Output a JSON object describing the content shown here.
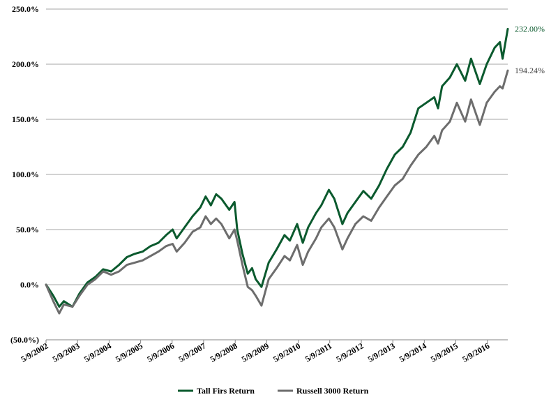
{
  "chart_data": {
    "type": "line",
    "title": "",
    "xlabel": "",
    "ylabel": "",
    "ylim": [
      -50,
      250
    ],
    "yticks": [
      -50,
      0,
      50,
      100,
      150,
      200,
      250
    ],
    "ytick_labels": [
      "(50.0%)",
      "0.0%",
      "50.0%",
      "100.0%",
      "150.0%",
      "200.0%",
      "250.0%"
    ],
    "xlim": [
      "2002-05-09",
      "2016-12-31"
    ],
    "xtick_labels": [
      "5/9/2002",
      "5/9/2003",
      "5/9/2004",
      "5/9/2005",
      "5/9/2006",
      "5/9/2007",
      "5/9/2008",
      "5/9/2009",
      "5/9/2010",
      "5/9/2011",
      "5/9/2012",
      "5/9/2013",
      "5/9/2014",
      "5/9/2015",
      "5/9/2016"
    ],
    "grid": "horizontal",
    "legend_position": "bottom",
    "series": [
      {
        "name": "Tall Firs Return",
        "color": "#0b5a2e",
        "end_label": "232.00%",
        "x": [
          "2002-05-09",
          "2002-08-01",
          "2002-10-09",
          "2002-12-01",
          "2003-03-11",
          "2003-06-01",
          "2003-09-01",
          "2003-12-01",
          "2004-03-01",
          "2004-06-01",
          "2004-09-01",
          "2004-12-01",
          "2005-03-01",
          "2005-06-01",
          "2005-09-01",
          "2005-12-01",
          "2006-03-01",
          "2006-05-15",
          "2006-07-01",
          "2006-10-01",
          "2007-01-01",
          "2007-04-01",
          "2007-06-01",
          "2007-08-01",
          "2007-10-01",
          "2007-12-01",
          "2008-03-01",
          "2008-05-01",
          "2008-06-01",
          "2008-08-01",
          "2008-10-01",
          "2008-11-20",
          "2009-01-01",
          "2009-03-09",
          "2009-06-01",
          "2009-09-01",
          "2009-12-01",
          "2010-02-01",
          "2010-04-26",
          "2010-07-01",
          "2010-09-01",
          "2010-12-01",
          "2011-02-01",
          "2011-04-29",
          "2011-07-01",
          "2011-10-03",
          "2011-12-01",
          "2012-03-01",
          "2012-06-01",
          "2012-09-01",
          "2012-12-01",
          "2013-03-01",
          "2013-06-01",
          "2013-09-01",
          "2013-12-01",
          "2014-03-01",
          "2014-06-01",
          "2014-09-01",
          "2014-10-15",
          "2014-12-01",
          "2015-03-01",
          "2015-05-21",
          "2015-08-25",
          "2015-11-01",
          "2016-02-11",
          "2016-05-01",
          "2016-08-01",
          "2016-10-01",
          "2016-11-01",
          "2016-12-31"
        ],
        "y": [
          0,
          -10,
          -20,
          -15,
          -20,
          -8,
          2,
          7,
          14,
          12,
          18,
          25,
          28,
          30,
          35,
          38,
          45,
          50,
          42,
          52,
          62,
          70,
          80,
          72,
          82,
          78,
          68,
          75,
          50,
          28,
          10,
          15,
          5,
          -2,
          20,
          32,
          45,
          40,
          55,
          38,
          52,
          65,
          72,
          86,
          78,
          55,
          65,
          75,
          85,
          78,
          90,
          105,
          118,
          125,
          138,
          160,
          165,
          170,
          160,
          180,
          188,
          200,
          185,
          205,
          182,
          200,
          215,
          220,
          205,
          232
        ]
      },
      {
        "name": "Russell 3000 Return",
        "color": "#6d6d6d",
        "end_label": "194.24%",
        "x": [
          "2002-05-09",
          "2002-08-01",
          "2002-10-09",
          "2002-12-01",
          "2003-03-11",
          "2003-06-01",
          "2003-09-01",
          "2003-12-01",
          "2004-03-01",
          "2004-06-01",
          "2004-09-01",
          "2004-12-01",
          "2005-03-01",
          "2005-06-01",
          "2005-09-01",
          "2005-12-01",
          "2006-03-01",
          "2006-05-15",
          "2006-07-01",
          "2006-10-01",
          "2007-01-01",
          "2007-04-01",
          "2007-06-01",
          "2007-08-01",
          "2007-10-01",
          "2007-12-01",
          "2008-03-01",
          "2008-05-01",
          "2008-06-01",
          "2008-08-01",
          "2008-10-01",
          "2008-11-20",
          "2009-01-01",
          "2009-03-09",
          "2009-06-01",
          "2009-09-01",
          "2009-12-01",
          "2010-02-01",
          "2010-04-26",
          "2010-07-01",
          "2010-09-01",
          "2010-12-01",
          "2011-02-01",
          "2011-04-29",
          "2011-07-01",
          "2011-10-03",
          "2011-12-01",
          "2012-03-01",
          "2012-06-01",
          "2012-09-01",
          "2012-12-01",
          "2013-03-01",
          "2013-06-01",
          "2013-09-01",
          "2013-12-01",
          "2014-03-01",
          "2014-06-01",
          "2014-09-01",
          "2014-10-15",
          "2014-12-01",
          "2015-03-01",
          "2015-05-21",
          "2015-08-25",
          "2015-11-01",
          "2016-02-11",
          "2016-05-01",
          "2016-08-01",
          "2016-10-01",
          "2016-11-01",
          "2016-12-31"
        ],
        "y": [
          0,
          -15,
          -26,
          -18,
          -20,
          -10,
          0,
          5,
          12,
          9,
          12,
          18,
          20,
          22,
          26,
          30,
          35,
          37,
          30,
          38,
          48,
          52,
          62,
          55,
          60,
          55,
          42,
          50,
          40,
          18,
          -2,
          -5,
          -10,
          -19,
          5,
          15,
          26,
          22,
          36,
          18,
          30,
          42,
          52,
          60,
          52,
          32,
          42,
          55,
          62,
          58,
          70,
          80,
          90,
          96,
          108,
          118,
          125,
          135,
          128,
          140,
          148,
          165,
          148,
          168,
          145,
          165,
          175,
          180,
          178,
          194.24
        ]
      }
    ]
  }
}
